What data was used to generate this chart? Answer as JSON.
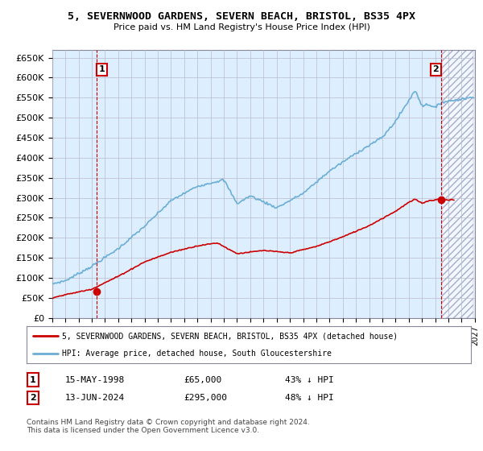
{
  "title": "5, SEVERNWOOD GARDENS, SEVERN BEACH, BRISTOL, BS35 4PX",
  "subtitle": "Price paid vs. HM Land Registry's House Price Index (HPI)",
  "ylim": [
    0,
    670000
  ],
  "yticks": [
    0,
    50000,
    100000,
    150000,
    200000,
    250000,
    300000,
    350000,
    400000,
    450000,
    500000,
    550000,
    600000,
    650000
  ],
  "ytick_labels": [
    "£0",
    "£50K",
    "£100K",
    "£150K",
    "£200K",
    "£250K",
    "£300K",
    "£350K",
    "£400K",
    "£450K",
    "£500K",
    "£550K",
    "£600K",
    "£650K"
  ],
  "hpi_color": "#6baed6",
  "sale_color": "#cc0000",
  "hatch_bg": "#d8e8f5",
  "chart_bg": "#ddeeff",
  "point1_x": 1998.37,
  "point1_y": 65000,
  "point2_x": 2024.44,
  "point2_y": 295000,
  "annotation1": "1",
  "annotation2": "2",
  "legend_sale": "5, SEVERNWOOD GARDENS, SEVERN BEACH, BRISTOL, BS35 4PX (detached house)",
  "legend_hpi": "HPI: Average price, detached house, South Gloucestershire",
  "table_row1_label": "1",
  "table_row1_date": "15-MAY-1998",
  "table_row1_price": "£65,000",
  "table_row1_hpi": "43% ↓ HPI",
  "table_row2_label": "2",
  "table_row2_date": "13-JUN-2024",
  "table_row2_price": "£295,000",
  "table_row2_hpi": "48% ↓ HPI",
  "footer": "Contains HM Land Registry data © Crown copyright and database right 2024.\nThis data is licensed under the Open Government Licence v3.0.",
  "background_color": "#ffffff",
  "grid_color": "#bbbbcc",
  "xlim_left": 1995,
  "xlim_right": 2027
}
